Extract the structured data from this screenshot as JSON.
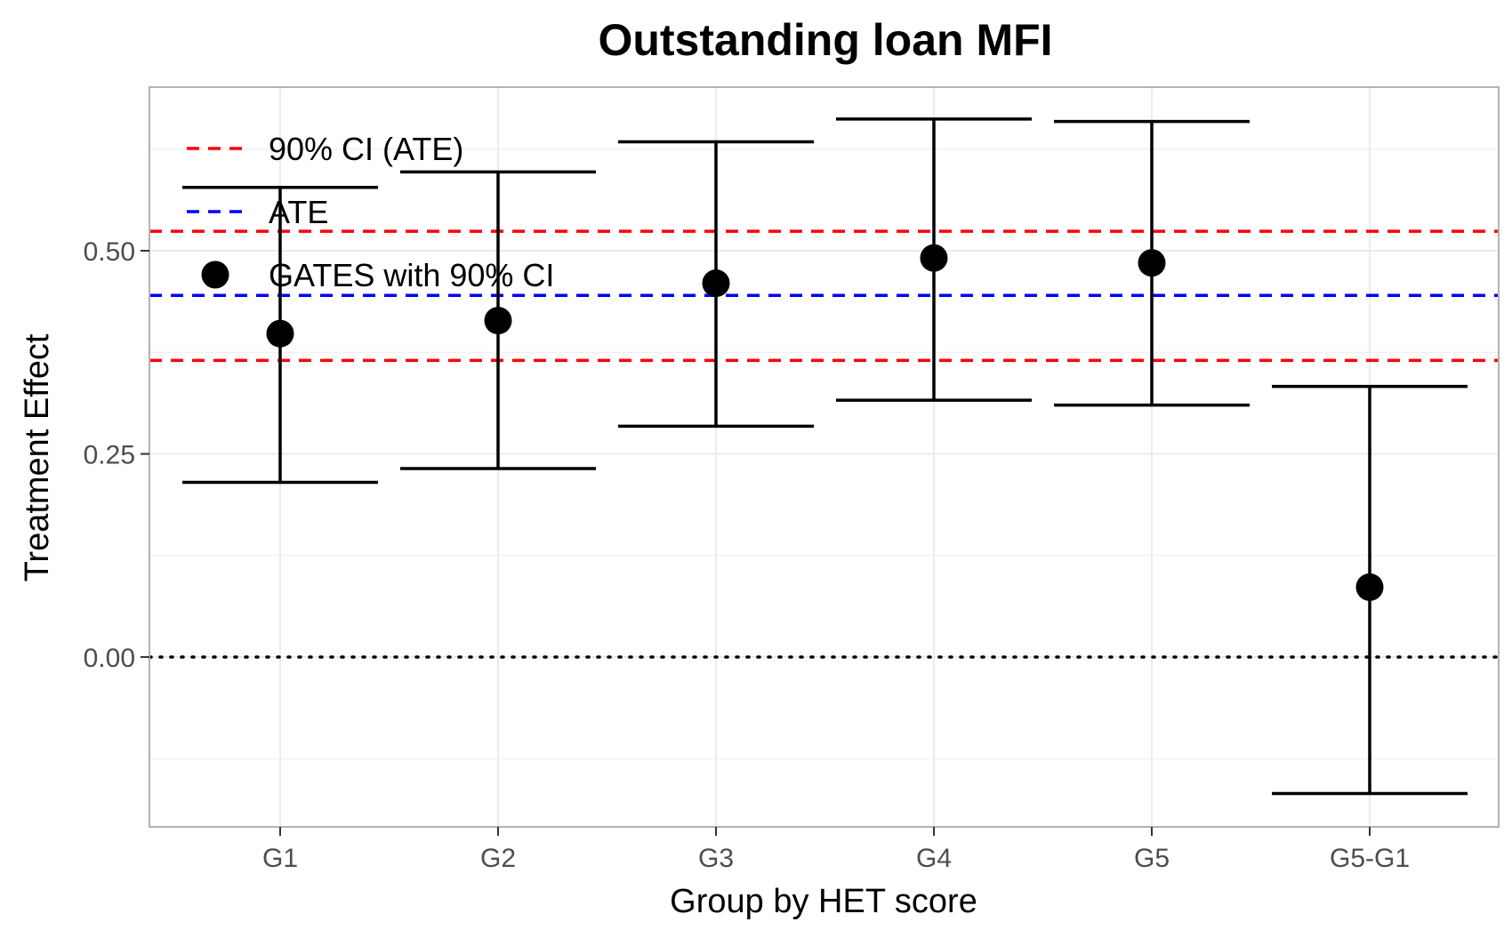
{
  "chart_data": {
    "type": "scatter",
    "title": "Outstanding loan MFI",
    "xlabel": "Group by HET score",
    "ylabel": "Treatment Effect",
    "categories": [
      "G1",
      "G2",
      "G3",
      "G4",
      "G5",
      "G5-G1"
    ],
    "series": [
      {
        "name": "GATES with 90% CI",
        "values": [
          0.398,
          0.414,
          0.46,
          0.491,
          0.485,
          0.086
        ],
        "ci_lower": [
          0.215,
          0.232,
          0.284,
          0.316,
          0.31,
          -0.168
        ],
        "ci_upper": [
          0.578,
          0.597,
          0.634,
          0.662,
          0.659,
          0.333
        ]
      }
    ],
    "reference_lines": [
      {
        "name": "ATE",
        "value": 0.445,
        "color": "#0000ff",
        "style": "dashed"
      },
      {
        "name": "90% CI (ATE)",
        "values": [
          0.365,
          0.524
        ],
        "color": "#ff0000",
        "style": "dashed"
      },
      {
        "value": 0.0,
        "color": "#000000",
        "style": "dotted"
      }
    ],
    "yticks": [
      0.0,
      0.25,
      0.5
    ],
    "ytick_labels": [
      "0.00",
      "0.25",
      "0.50"
    ],
    "ylim": [
      -0.2,
      0.7
    ],
    "grid": true,
    "legend": {
      "placement": "top-left",
      "entries": [
        {
          "label": "90% CI (ATE)",
          "symbol": "dashed-line",
          "color": "#ff0000"
        },
        {
          "label": "ATE",
          "symbol": "dashed-line",
          "color": "#0000ff"
        },
        {
          "label": "GATES with 90% CI",
          "symbol": "point",
          "color": "#000000"
        }
      ]
    }
  }
}
